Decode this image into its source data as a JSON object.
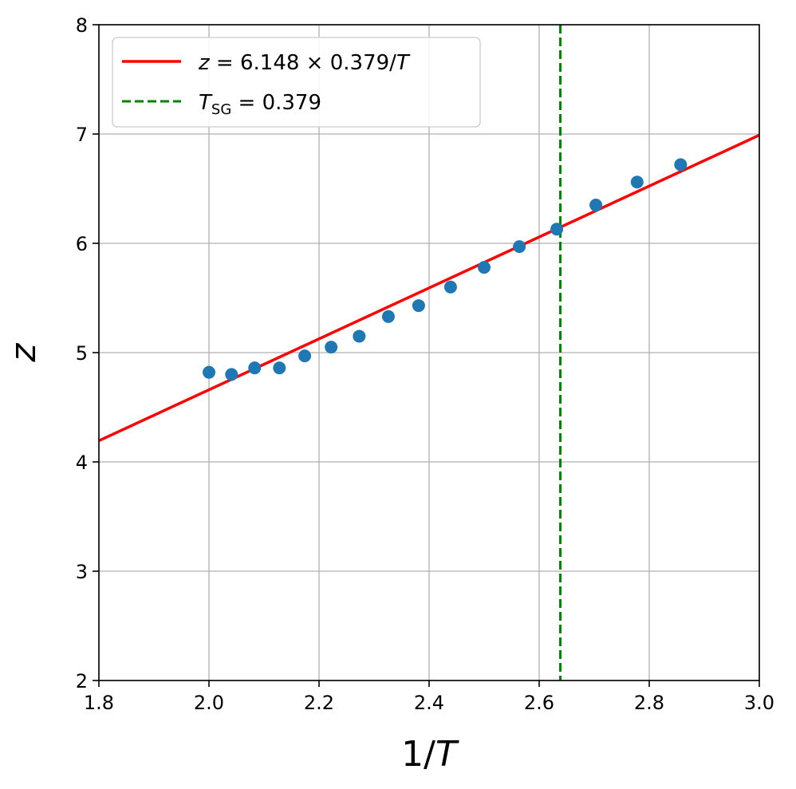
{
  "chart_data": {
    "type": "scatter",
    "xlabel": "1/T",
    "ylabel": "z",
    "xlim": [
      1.8,
      3.0
    ],
    "ylim": [
      2,
      8
    ],
    "xticks": [
      "1.8",
      "2.0",
      "2.2",
      "2.4",
      "2.6",
      "2.8",
      "3.0"
    ],
    "yticks": [
      "2",
      "3",
      "4",
      "5",
      "6",
      "7",
      "8"
    ],
    "grid": true,
    "legend_position": "top-left",
    "series": [
      {
        "kind": "points",
        "color": "#1f77b4",
        "x": [
          2.0,
          2.041,
          2.083,
          2.128,
          2.174,
          2.222,
          2.273,
          2.326,
          2.381,
          2.439,
          2.5,
          2.564,
          2.632,
          2.703,
          2.778,
          2.857
        ],
        "y": [
          4.82,
          4.8,
          4.86,
          4.86,
          4.97,
          5.05,
          5.15,
          5.33,
          5.43,
          5.6,
          5.78,
          5.97,
          6.13,
          6.35,
          6.56,
          6.72
        ]
      },
      {
        "kind": "fit-line",
        "color": "#ff0000",
        "slope_expr": "6.148 × 0.379",
        "x_range": [
          1.8,
          3.0
        ],
        "y_range": [
          4.194,
          6.99
        ],
        "legend_label": {
          "var": "z",
          "rhs": " = 6.148 × 0.379/",
          "denom": "T"
        }
      },
      {
        "kind": "vline",
        "color": "#008000",
        "x": 2.6385,
        "legend_label": {
          "var": "T",
          "sub": "SG",
          "rhs": " = 0.379"
        }
      }
    ]
  }
}
